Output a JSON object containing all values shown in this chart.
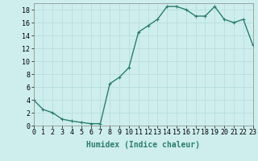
{
  "x": [
    0,
    1,
    2,
    3,
    4,
    5,
    6,
    7,
    8,
    9,
    10,
    11,
    12,
    13,
    14,
    15,
    16,
    17,
    18,
    19,
    20,
    21,
    22,
    23
  ],
  "y": [
    4,
    2.5,
    2,
    1,
    0.7,
    0.5,
    0.3,
    0.3,
    6.5,
    7.5,
    9,
    14.5,
    15.5,
    16.5,
    18.5,
    18.5,
    18,
    17,
    17,
    18.5,
    16.5,
    16,
    16.5,
    12.5
  ],
  "xlabel": "Humidex (Indice chaleur)",
  "xlim": [
    0,
    23
  ],
  "ylim": [
    0,
    19
  ],
  "yticks": [
    0,
    2,
    4,
    6,
    8,
    10,
    12,
    14,
    16,
    18
  ],
  "xtick_labels": [
    "0",
    "1",
    "2",
    "3",
    "4",
    "5",
    "6",
    "7",
    "8",
    "9",
    "10",
    "11",
    "12",
    "13",
    "14",
    "15",
    "16",
    "17",
    "18",
    "19",
    "20",
    "21",
    "22",
    "23"
  ],
  "line_color": "#2d7d6e",
  "bg_color": "#cdeeed",
  "grid_color": "#b8dede",
  "marker": "+",
  "marker_size": 3,
  "line_width": 1.0,
  "label_fontsize": 7,
  "tick_fontsize": 6
}
